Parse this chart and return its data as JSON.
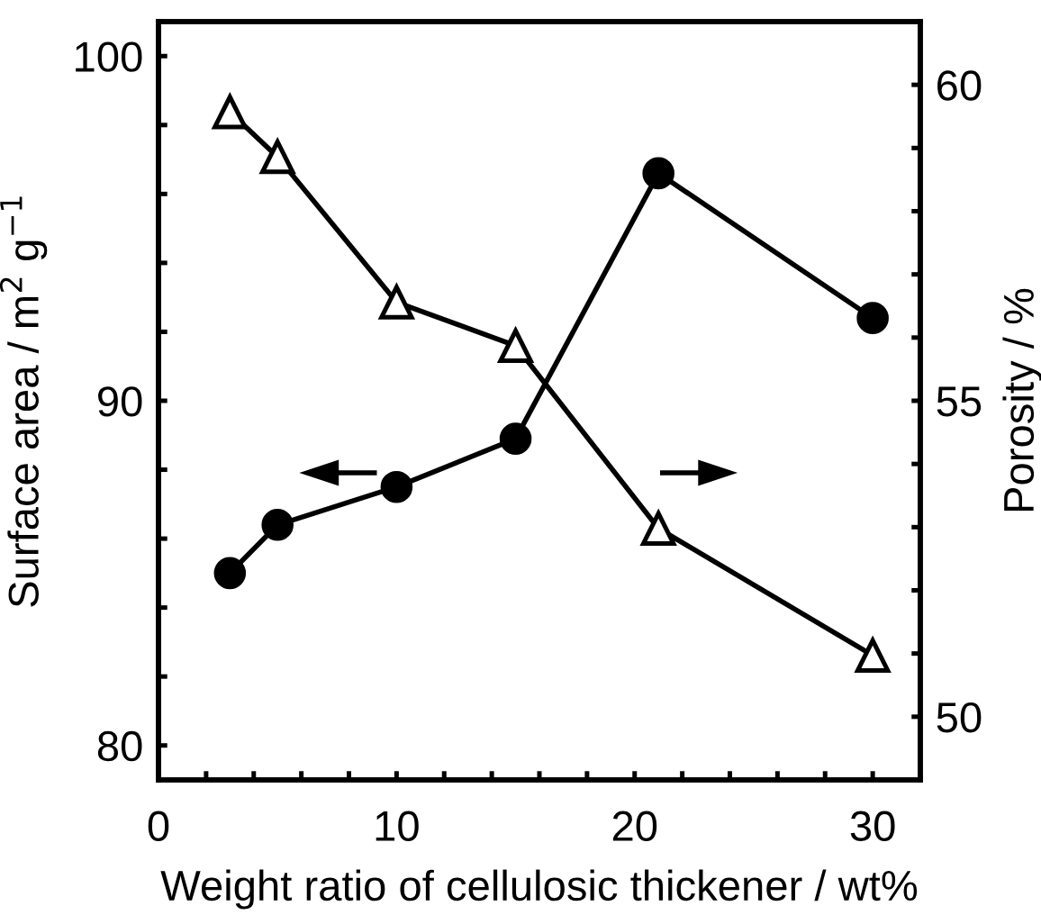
{
  "chart_data": {
    "type": "line",
    "xlabel": "Weight ratio of cellulosic thickener / wt%",
    "ylabel": "Surface area / m$^{2}$ g$^{−1}$",
    "y2label": "Porosity / %",
    "x": [
      3,
      5,
      10,
      15,
      21,
      30
    ],
    "series": [
      {
        "color": "#000000",
        "marker": "circle",
        "values": [
          85.0,
          86.4,
          87.5,
          88.9,
          96.6,
          92.4
        ]
      },
      {
        "color": "#000000",
        "marker": "triangle",
        "axis": "y2",
        "values": [
          59.57,
          58.86,
          56.56,
          55.87,
          52.98,
          50.97
        ]
      }
    ],
    "xlim": [
      0,
      32
    ],
    "xticks": [
      0,
      {
        "value": 2,
        "label": null
      },
      {
        "value": 4,
        "label": null
      },
      {
        "value": 6,
        "label": null
      },
      {
        "value": 8,
        "label": null
      },
      10,
      {
        "value": 12,
        "label": null
      },
      {
        "value": 14,
        "label": null
      },
      {
        "value": 16,
        "label": null
      },
      {
        "value": 18,
        "label": null
      },
      20,
      {
        "value": 22,
        "label": null
      },
      {
        "value": 24,
        "label": null
      },
      {
        "value": 26,
        "label": null
      },
      {
        "value": 28,
        "label": null
      },
      30
    ],
    "ylim": [
      79,
      101
    ],
    "yticks": [
      80,
      {
        "value": 82,
        "label": null
      },
      {
        "value": 84,
        "label": null
      },
      {
        "value": 86,
        "label": null
      },
      {
        "value": 88,
        "label": null
      },
      90,
      {
        "value": 92,
        "label": null
      },
      {
        "value": 94,
        "label": null
      },
      {
        "value": 96,
        "label": null
      },
      {
        "value": 98,
        "label": null
      },
      100
    ],
    "y2lim": [
      49,
      61
    ],
    "y2ticks": [
      50,
      {
        "value": 51,
        "label": null
      },
      {
        "value": 52,
        "label": null
      },
      {
        "value": 53,
        "label": null
      },
      {
        "value": 54,
        "label": null
      },
      55,
      {
        "value": 56,
        "label": null
      },
      {
        "value": 57,
        "label": null
      },
      {
        "value": 58,
        "label": null
      },
      {
        "value": 59,
        "label": null
      },
      60
    ],
    "grid": false,
    "legend": false,
    "line_style": "solid"
  }
}
